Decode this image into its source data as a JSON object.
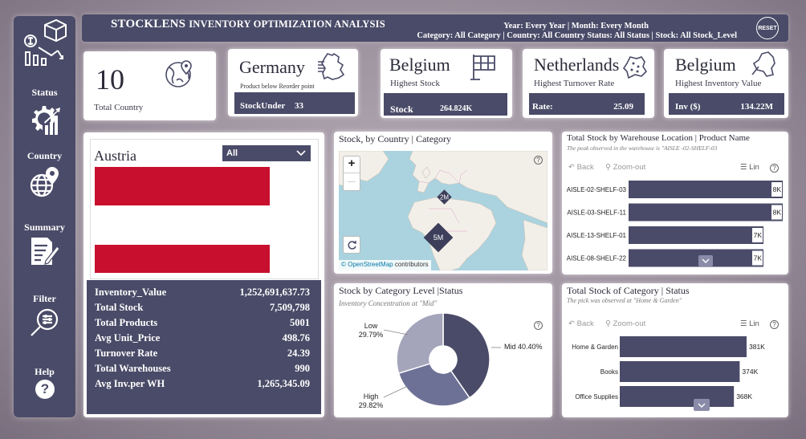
{
  "header": {
    "title_main": "STOCKLENS",
    "title_rest": "INVENTORY OPTIMIZATION ANALYSIS",
    "filters_line1": "Year: Every Year | Month: Every Month",
    "filters_line2": "Category: All Category | Country: All Country Status: All Status | Stock: All Stock_Level",
    "reset_label": "RESET"
  },
  "sidebar": {
    "items": [
      {
        "label": "Status",
        "icon": "status-gear-chart-icon"
      },
      {
        "label": "Country",
        "icon": "globe-pin-icon"
      },
      {
        "label": "Summary",
        "icon": "document-pen-icon"
      },
      {
        "label": "Filter",
        "icon": "magnifier-filter-icon"
      },
      {
        "label": "Help",
        "icon": "question-icon"
      }
    ],
    "help_symbol": "?"
  },
  "kpis": {
    "total_country": {
      "value": "10",
      "label": "Total Country"
    },
    "reorder": {
      "country": "Germany",
      "label": "Product below Reorder point",
      "bar_key": "StockUnder",
      "bar_value": "33"
    },
    "highest_stock": {
      "country": "Belgium",
      "label": "Highest Stock",
      "bar_key": "Stock",
      "bar_value": "264.824K"
    },
    "turnover": {
      "country": "Netherlands",
      "label": "Highest Turnover Rate",
      "bar_key": "Rate:",
      "bar_value": "25.09"
    },
    "inventory_value": {
      "country": "Belgium",
      "label": "Highest Inventory Value",
      "bar_key": "Inv ($)",
      "bar_value": "134.22M"
    }
  },
  "country_panel": {
    "country": "Austria",
    "dropdown_value": "All",
    "flag_colors": {
      "red": "#c8102e",
      "white": "#ffffff"
    },
    "stats": [
      {
        "key": "Inventory_Value",
        "value": "1,252,691,637.73"
      },
      {
        "key": "Total Stock",
        "value": "7,509,798"
      },
      {
        "key": "Total Products",
        "value": "5001"
      },
      {
        "key": "Avg Unit_Price",
        "value": "498.76"
      },
      {
        "key": "Turnover Rate",
        "value": "24.39"
      },
      {
        "key": "Total Warehouses",
        "value": "990"
      },
      {
        "key": "Avg Inv.per WH",
        "value": "1,265,345.09"
      }
    ]
  },
  "map_panel": {
    "title": "Stock, by Country | Category",
    "zoom_in": "+",
    "zoom_out": "—",
    "markers": [
      "2M",
      "5M"
    ],
    "attribution_link": "© OpenStreetMap",
    "attribution_rest": "contributors"
  },
  "toolbar": {
    "back": "Back",
    "zoom_out": "Zoom-out",
    "lin": "Lin"
  },
  "warehouse_panel": {
    "title": "Total Stock by Warehouse Location | Product Name",
    "subtitle": "The peak observed in the warehouse is \"AISLE -02-SHELF-03"
  },
  "pie_panel": {
    "title": "Stock by Category Level |Status",
    "subtitle": "Inventory Concentration at \"Mid\""
  },
  "category_panel": {
    "title": "Total Stock of Category | Status",
    "subtitle": "The pick was observed at \"Home & Garden\""
  },
  "chart_data": [
    {
      "type": "bar",
      "orientation": "horizontal",
      "categories": [
        "AISLE-02-SHELF-03",
        "AISLE-03-SHELF-11",
        "AISLE-13-SHELF-01",
        "AISLE-08-SHELF-22"
      ],
      "values": [
        8000,
        8000,
        7000,
        7000
      ],
      "labels": [
        "8K",
        "8K",
        "7K",
        "7K"
      ],
      "color": "#4a4b68"
    },
    {
      "type": "pie",
      "donut": true,
      "slices": [
        {
          "name": "Mid",
          "value": 40.4,
          "label": "40.40%",
          "color": "#4a4b68"
        },
        {
          "name": "High",
          "value": 29.82,
          "label": "29.82%",
          "color": "#6e7196"
        },
        {
          "name": "Low",
          "value": 29.79,
          "label": "29.79%",
          "color": "#a4a5bb"
        }
      ]
    },
    {
      "type": "bar",
      "orientation": "horizontal",
      "categories": [
        "Home & Garden",
        "Books",
        "Office Supplies"
      ],
      "values": [
        381,
        374,
        368
      ],
      "labels": [
        "381K",
        "374K",
        "368K"
      ],
      "color": "#4a4b68"
    }
  ]
}
